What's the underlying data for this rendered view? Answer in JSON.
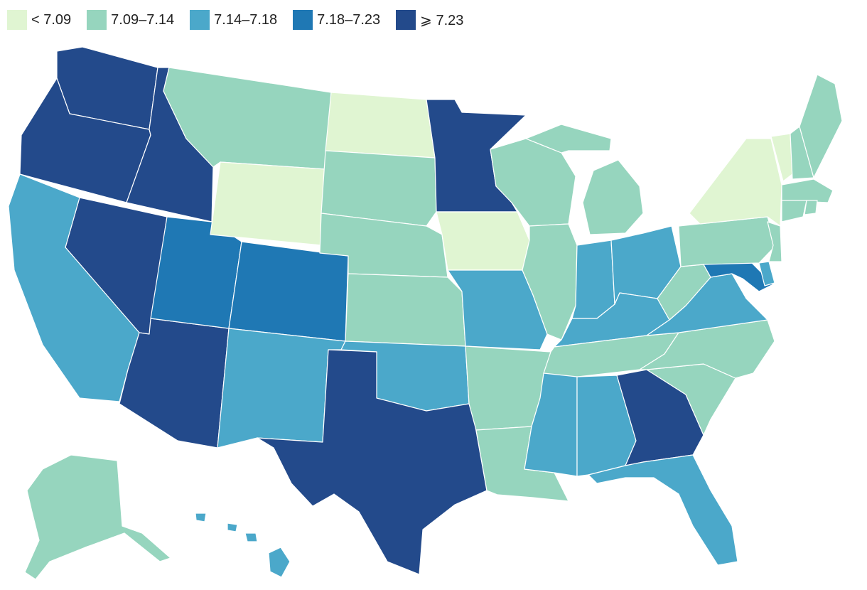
{
  "legend": {
    "bins": [
      {
        "label": "< 7.09",
        "color": "#e0f5d2"
      },
      {
        "label": "7.09–7.14",
        "color": "#96d5be"
      },
      {
        "label": "7.14–7.18",
        "color": "#4ba8ca"
      },
      {
        "label": "7.18–7.23",
        "color": "#1f78b4"
      },
      {
        "label": "⩾ 7.23",
        "color": "#234a8b"
      }
    ]
  },
  "chart_data": {
    "type": "choropleth",
    "region": "United States",
    "classes": [
      "< 7.09",
      "7.09–7.14",
      "7.14–7.18",
      "7.18–7.23",
      "⩾ 7.23"
    ],
    "states": [
      {
        "state": "WA",
        "bin": 4
      },
      {
        "state": "OR",
        "bin": 4
      },
      {
        "state": "ID",
        "bin": 4
      },
      {
        "state": "NV",
        "bin": 4
      },
      {
        "state": "AZ",
        "bin": 4
      },
      {
        "state": "TX",
        "bin": 4
      },
      {
        "state": "MN",
        "bin": 4
      },
      {
        "state": "GA",
        "bin": 4
      },
      {
        "state": "UT",
        "bin": 3
      },
      {
        "state": "CO",
        "bin": 3
      },
      {
        "state": "MD",
        "bin": 3
      },
      {
        "state": "CA",
        "bin": 2
      },
      {
        "state": "NM",
        "bin": 2
      },
      {
        "state": "OK",
        "bin": 2
      },
      {
        "state": "MO",
        "bin": 2
      },
      {
        "state": "IN",
        "bin": 2
      },
      {
        "state": "OH",
        "bin": 2
      },
      {
        "state": "KY",
        "bin": 2
      },
      {
        "state": "VA",
        "bin": 2
      },
      {
        "state": "MS",
        "bin": 2
      },
      {
        "state": "AL",
        "bin": 2
      },
      {
        "state": "FL",
        "bin": 2
      },
      {
        "state": "HI",
        "bin": 2
      },
      {
        "state": "DE",
        "bin": 2
      },
      {
        "state": "MT",
        "bin": 1
      },
      {
        "state": "SD",
        "bin": 1
      },
      {
        "state": "NE",
        "bin": 1
      },
      {
        "state": "KS",
        "bin": 1
      },
      {
        "state": "AR",
        "bin": 1
      },
      {
        "state": "LA",
        "bin": 1
      },
      {
        "state": "WI",
        "bin": 1
      },
      {
        "state": "IL",
        "bin": 1
      },
      {
        "state": "MI",
        "bin": 1
      },
      {
        "state": "TN",
        "bin": 1
      },
      {
        "state": "NC",
        "bin": 1
      },
      {
        "state": "SC",
        "bin": 1
      },
      {
        "state": "WV",
        "bin": 1
      },
      {
        "state": "PA",
        "bin": 1
      },
      {
        "state": "NJ",
        "bin": 1
      },
      {
        "state": "CT",
        "bin": 1
      },
      {
        "state": "RI",
        "bin": 1
      },
      {
        "state": "MA",
        "bin": 1
      },
      {
        "state": "NH",
        "bin": 1
      },
      {
        "state": "ME",
        "bin": 1
      },
      {
        "state": "AK",
        "bin": 1
      },
      {
        "state": "ND",
        "bin": 0
      },
      {
        "state": "WY",
        "bin": 0
      },
      {
        "state": "IA",
        "bin": 0
      },
      {
        "state": "NY",
        "bin": 0
      },
      {
        "state": "VT",
        "bin": 0
      }
    ]
  }
}
